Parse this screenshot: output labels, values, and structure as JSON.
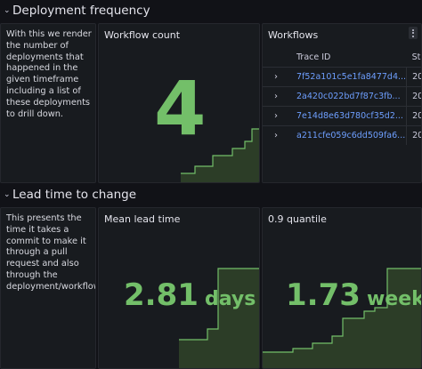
{
  "rows": [
    {
      "title": "Deployment frequency",
      "text": "With this we render the number of deployments that happened in the given timeframe including a list of these deployments to drill down.",
      "stat": {
        "title": "Workflow count",
        "value": "4",
        "unit": ""
      },
      "table": {
        "title": "Workflows",
        "columns": [
          "Trace ID",
          "Sta"
        ],
        "rows": [
          {
            "trace": "7f52a101c5e1fa8477d4...",
            "status": "20"
          },
          {
            "trace": "2a420c022bd7f87c3fb...",
            "status": "20"
          },
          {
            "trace": "7e14d8e63d780cf35d2...",
            "status": "20"
          },
          {
            "trace": "a211cfe059c6dd509fa6...",
            "status": "20"
          }
        ]
      }
    },
    {
      "title": "Lead time to change",
      "text": "This presents the time it takes a commit to make it through a pull request and also through the deployment/workflow.",
      "stat1": {
        "title": "Mean lead time",
        "value": "2.81",
        "unit": "days"
      },
      "stat2": {
        "title": "0.9 quantile",
        "value": "1.73",
        "unit": "weeks"
      }
    }
  ],
  "colors": {
    "value": "#73bf69",
    "link": "#6e9fff",
    "panel": "#181b1f",
    "background": "#111217"
  },
  "icons": {
    "collapse": "chevron-down-icon",
    "expand": "chevron-right-icon",
    "menu": "kebab-menu-icon"
  }
}
